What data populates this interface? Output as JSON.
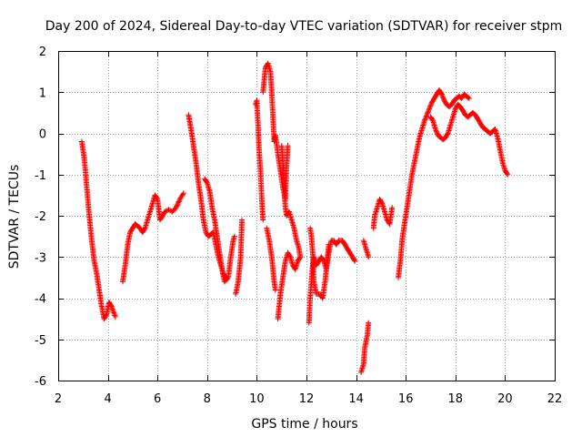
{
  "chart_data": {
    "type": "scatter",
    "title": "Day 200 of 2024, Sidereal Day-to-day VTEC variation (SDTVAR) for receiver stpm",
    "xlabel": "GPS time / hours",
    "ylabel": "SDTVAR / TECUs",
    "xlim": [
      2,
      22
    ],
    "ylim": [
      -6,
      2
    ],
    "xticks": [
      2,
      4,
      6,
      8,
      10,
      12,
      14,
      16,
      18,
      20,
      22
    ],
    "yticks": [
      -6,
      -5,
      -4,
      -3,
      -2,
      -1,
      0,
      1,
      2
    ],
    "grid": true,
    "marker": "+",
    "color": "#ff0000",
    "series": [
      {
        "name": "SDTVAR",
        "segments": [
          [
            [
              2.95,
              -0.2
            ],
            [
              3.05,
              -0.6
            ],
            [
              3.15,
              -1.3
            ],
            [
              3.25,
              -2.0
            ],
            [
              3.35,
              -2.6
            ],
            [
              3.45,
              -3.1
            ],
            [
              3.55,
              -3.4
            ],
            [
              3.65,
              -3.8
            ],
            [
              3.75,
              -4.2
            ],
            [
              3.85,
              -4.5
            ],
            [
              3.95,
              -4.4
            ],
            [
              4.05,
              -4.1
            ],
            [
              4.15,
              -4.2
            ],
            [
              4.3,
              -4.45
            ]
          ],
          [
            [
              4.6,
              -3.6
            ],
            [
              4.7,
              -3.2
            ],
            [
              4.8,
              -2.7
            ],
            [
              4.9,
              -2.4
            ],
            [
              5.0,
              -2.3
            ],
            [
              5.1,
              -2.2
            ],
            [
              5.2,
              -2.25
            ],
            [
              5.3,
              -2.3
            ],
            [
              5.4,
              -2.4
            ],
            [
              5.5,
              -2.3
            ],
            [
              5.6,
              -2.1
            ],
            [
              5.7,
              -1.9
            ],
            [
              5.8,
              -1.7
            ],
            [
              5.9,
              -1.5
            ],
            [
              6.0,
              -1.6
            ],
            [
              6.1,
              -2.1
            ],
            [
              6.2,
              -2.0
            ],
            [
              6.3,
              -1.9
            ],
            [
              6.45,
              -1.85
            ],
            [
              6.6,
              -1.9
            ],
            [
              6.75,
              -1.8
            ],
            [
              6.9,
              -1.6
            ],
            [
              7.05,
              -1.45
            ]
          ],
          [
            [
              7.25,
              0.45
            ],
            [
              7.35,
              0.1
            ],
            [
              7.45,
              -0.3
            ],
            [
              7.55,
              -0.7
            ],
            [
              7.65,
              -1.2
            ],
            [
              7.75,
              -1.6
            ],
            [
              7.85,
              -2.1
            ],
            [
              7.95,
              -2.4
            ],
            [
              8.05,
              -2.5
            ],
            [
              8.15,
              -2.45
            ],
            [
              8.25,
              -2.4
            ],
            [
              8.35,
              -2.7
            ],
            [
              8.45,
              -3.0
            ],
            [
              8.55,
              -3.2
            ],
            [
              8.65,
              -3.4
            ],
            [
              8.75,
              -3.5
            ]
          ],
          [
            [
              7.9,
              -1.1
            ],
            [
              8.0,
              -1.2
            ],
            [
              8.1,
              -1.4
            ],
            [
              8.2,
              -1.8
            ],
            [
              8.3,
              -2.1
            ],
            [
              8.4,
              -2.5
            ],
            [
              8.5,
              -2.9
            ],
            [
              8.6,
              -3.3
            ],
            [
              8.7,
              -3.6
            ],
            [
              8.85,
              -3.5
            ],
            [
              8.95,
              -3.0
            ],
            [
              9.05,
              -2.6
            ],
            [
              9.1,
              -2.5
            ]
          ],
          [
            [
              9.15,
              -3.9
            ],
            [
              9.25,
              -3.6
            ],
            [
              9.35,
              -3.0
            ],
            [
              9.4,
              -2.1
            ]
          ],
          [
            [
              9.95,
              0.7
            ],
            [
              10.0,
              0.8
            ],
            [
              10.05,
              0.2
            ],
            [
              10.1,
              -0.5
            ],
            [
              10.15,
              -0.9
            ],
            [
              10.2,
              -1.6
            ],
            [
              10.25,
              -2.1
            ]
          ],
          [
            [
              10.25,
              1.0
            ],
            [
              10.3,
              1.3
            ],
            [
              10.35,
              1.6
            ],
            [
              10.45,
              1.7
            ],
            [
              10.55,
              1.5
            ],
            [
              10.6,
              1.0
            ],
            [
              10.65,
              0.4
            ],
            [
              10.7,
              -0.2
            ],
            [
              10.75,
              -0.05
            ],
            [
              10.85,
              -0.5
            ],
            [
              10.95,
              -0.9
            ],
            [
              11.05,
              -1.3
            ],
            [
              11.15,
              -1.6
            ],
            [
              11.2,
              -0.8
            ],
            [
              11.25,
              -0.3
            ]
          ],
          [
            [
              10.4,
              -2.3
            ],
            [
              10.5,
              -2.6
            ],
            [
              10.6,
              -3.0
            ],
            [
              10.7,
              -3.6
            ],
            [
              10.75,
              -3.8
            ]
          ],
          [
            [
              10.85,
              -4.5
            ],
            [
              10.9,
              -4.2
            ],
            [
              10.95,
              -3.9
            ],
            [
              11.05,
              -3.5
            ],
            [
              11.15,
              -3.1
            ],
            [
              11.25,
              -2.9
            ],
            [
              11.35,
              -3.0
            ],
            [
              11.45,
              -3.2
            ],
            [
              11.55,
              -3.3
            ],
            [
              11.65,
              -3.1
            ],
            [
              11.75,
              -3.0
            ]
          ],
          [
            [
              11.0,
              -0.3
            ],
            [
              11.05,
              -0.7
            ],
            [
              11.1,
              -1.3
            ],
            [
              11.15,
              -1.8
            ],
            [
              11.2,
              -2.0
            ],
            [
              11.3,
              -1.9
            ],
            [
              11.4,
              -2.1
            ],
            [
              11.5,
              -2.3
            ],
            [
              11.6,
              -2.6
            ],
            [
              11.7,
              -2.8
            ],
            [
              11.75,
              -3.0
            ]
          ],
          [
            [
              12.1,
              -4.6
            ],
            [
              12.15,
              -4.0
            ],
            [
              12.2,
              -3.6
            ],
            [
              12.25,
              -3.2
            ],
            [
              12.3,
              -3.0
            ],
            [
              12.4,
              -3.2
            ],
            [
              12.5,
              -3.1
            ],
            [
              12.6,
              -3.0
            ],
            [
              12.7,
              -3.1
            ],
            [
              12.8,
              -3.3
            ],
            [
              12.9,
              -2.9
            ],
            [
              13.0,
              -2.6
            ],
            [
              13.1,
              -2.6
            ],
            [
              13.2,
              -2.7
            ],
            [
              13.3,
              -2.6
            ],
            [
              13.45,
              -2.6
            ],
            [
              13.55,
              -2.7
            ],
            [
              13.65,
              -2.8
            ],
            [
              13.75,
              -2.9
            ],
            [
              13.85,
              -3.0
            ],
            [
              13.95,
              -3.1
            ]
          ],
          [
            [
              12.15,
              -2.3
            ],
            [
              12.2,
              -2.5
            ],
            [
              12.25,
              -2.9
            ],
            [
              12.3,
              -3.6
            ],
            [
              12.4,
              -3.9
            ],
            [
              12.55,
              -3.9
            ],
            [
              12.65,
              -4.0
            ],
            [
              12.75,
              -3.6
            ],
            [
              12.85,
              -3.0
            ],
            [
              12.9,
              -2.7
            ]
          ],
          [
            [
              14.2,
              -5.8
            ],
            [
              14.3,
              -5.6
            ],
            [
              14.35,
              -5.2
            ],
            [
              14.45,
              -4.9
            ],
            [
              14.5,
              -4.6
            ]
          ],
          [
            [
              14.3,
              -2.6
            ],
            [
              14.4,
              -2.8
            ],
            [
              14.5,
              -3.0
            ]
          ],
          [
            [
              14.7,
              -2.3
            ],
            [
              14.75,
              -2.0
            ],
            [
              14.85,
              -1.8
            ],
            [
              14.95,
              -1.6
            ],
            [
              15.05,
              -1.7
            ],
            [
              15.15,
              -1.9
            ],
            [
              15.25,
              -2.1
            ],
            [
              15.35,
              -2.2
            ],
            [
              15.4,
              -2.0
            ],
            [
              15.45,
              -1.8
            ]
          ],
          [
            [
              15.7,
              -3.5
            ],
            [
              15.8,
              -3.0
            ],
            [
              15.85,
              -2.6
            ],
            [
              15.95,
              -2.2
            ],
            [
              16.05,
              -1.8
            ],
            [
              16.15,
              -1.4
            ],
            [
              16.25,
              -1.0
            ],
            [
              16.35,
              -0.7
            ],
            [
              16.45,
              -0.4
            ],
            [
              16.55,
              -0.1
            ],
            [
              16.65,
              0.1
            ],
            [
              16.75,
              0.3
            ],
            [
              16.85,
              0.45
            ],
            [
              16.95,
              0.6
            ],
            [
              17.05,
              0.75
            ],
            [
              17.15,
              0.85
            ],
            [
              17.25,
              0.95
            ],
            [
              17.35,
              1.05
            ],
            [
              17.45,
              0.95
            ],
            [
              17.55,
              0.8
            ],
            [
              17.65,
              0.7
            ],
            [
              17.75,
              0.65
            ],
            [
              17.85,
              0.7
            ],
            [
              17.95,
              0.8
            ],
            [
              18.05,
              0.85
            ],
            [
              18.15,
              0.9
            ],
            [
              18.25,
              0.85
            ],
            [
              18.35,
              0.95
            ],
            [
              18.45,
              0.9
            ],
            [
              18.55,
              0.85
            ]
          ],
          [
            [
              17.0,
              0.4
            ],
            [
              17.1,
              0.3
            ],
            [
              17.2,
              0.1
            ],
            [
              17.3,
              -0.05
            ],
            [
              17.4,
              -0.1
            ],
            [
              17.5,
              -0.15
            ],
            [
              17.6,
              -0.1
            ],
            [
              17.7,
              0.0
            ],
            [
              17.8,
              0.2
            ],
            [
              17.9,
              0.4
            ],
            [
              18.0,
              0.6
            ],
            [
              18.1,
              0.7
            ],
            [
              18.2,
              0.65
            ],
            [
              18.3,
              0.55
            ],
            [
              18.4,
              0.45
            ],
            [
              18.5,
              0.4
            ],
            [
              18.6,
              0.45
            ],
            [
              18.7,
              0.5
            ],
            [
              18.8,
              0.45
            ],
            [
              18.9,
              0.35
            ],
            [
              19.0,
              0.25
            ],
            [
              19.1,
              0.15
            ],
            [
              19.2,
              0.1
            ],
            [
              19.3,
              0.05
            ],
            [
              19.4,
              0.0
            ],
            [
              19.5,
              0.05
            ],
            [
              19.6,
              0.1
            ],
            [
              19.7,
              -0.1
            ],
            [
              19.8,
              -0.4
            ],
            [
              19.9,
              -0.7
            ],
            [
              20.0,
              -0.9
            ],
            [
              20.1,
              -1.0
            ]
          ]
        ]
      }
    ]
  }
}
